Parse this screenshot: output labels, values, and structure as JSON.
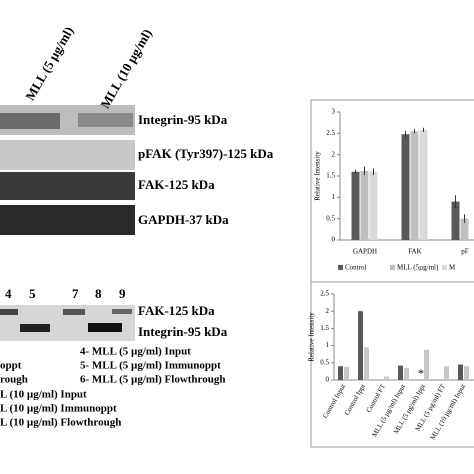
{
  "blot_top": {
    "lane_labels": [
      "MLL (5 µg/ml)",
      "MLL (10 µg/ml)"
    ],
    "bands": [
      "Integrin-95 kDa",
      "pFAK (Tyr397)-125 kDa",
      "FAK-125 kDa",
      "GAPDH-37 kDa"
    ]
  },
  "blot_bottom": {
    "lanes": [
      "4",
      "5",
      "7",
      "8",
      "9"
    ],
    "bands": [
      "FAK-125 kDa",
      "Integrin-95 kDa"
    ],
    "legend": [
      "oppt",
      "rough",
      "4- MLL (5 µg/ml) Input",
      "5- MLL (5 µg/ml) Immunoppt",
      "6- MLL (5 µg/ml) Flowthrough",
      "L (10 µg/ml) Input",
      "L (10 µg/ml) Immunoppt",
      "L (10 µg/ml) Flowthrough"
    ]
  },
  "chart_data": [
    {
      "type": "bar",
      "y_label": "Relative Intensity",
      "categories": [
        "GAPDH",
        "FAK",
        "pF"
      ],
      "series": [
        {
          "name": "Control",
          "color": "#595959",
          "values": [
            1.6,
            2.48,
            0.9
          ],
          "errors": [
            0.05,
            0.08,
            0.15
          ]
        },
        {
          "name": "MLL (5µg/ml)",
          "color": "#bfbfbf",
          "values": [
            1.62,
            2.55,
            0.5
          ],
          "errors": [
            0.1,
            0.05,
            0.1
          ]
        },
        {
          "name": "M",
          "color": "#d9d9d9",
          "values": [
            1.6,
            2.58,
            null
          ],
          "errors": [
            0.08,
            0.05,
            null
          ]
        }
      ],
      "ylim": [
        0,
        3
      ],
      "yticks": [
        0,
        0.5,
        1,
        1.5,
        2,
        2.5,
        3
      ]
    },
    {
      "type": "bar",
      "y_label": "Relative Intensity",
      "categories": [
        "Control Input",
        "Control Ippt",
        "Control FT",
        "MLL (5 µg/ml) Input",
        "MLL (5 µg/ml) Ippt",
        "MLL (5 µg/ml) FT",
        "MLL (10 µg/ml) Input"
      ],
      "series": [
        {
          "color": "#595959",
          "values": [
            0.4,
            2.0,
            null,
            0.42,
            null,
            null,
            0.45
          ]
        },
        {
          "color": "#c8c8c8",
          "values": [
            0.38,
            0.95,
            0.1,
            0.35,
            0.88,
            0.4,
            0.4
          ]
        }
      ],
      "annotation": "*",
      "ylim": [
        0,
        2.5
      ],
      "yticks": [
        0,
        0.5,
        1,
        1.5,
        2,
        2.5
      ]
    }
  ]
}
